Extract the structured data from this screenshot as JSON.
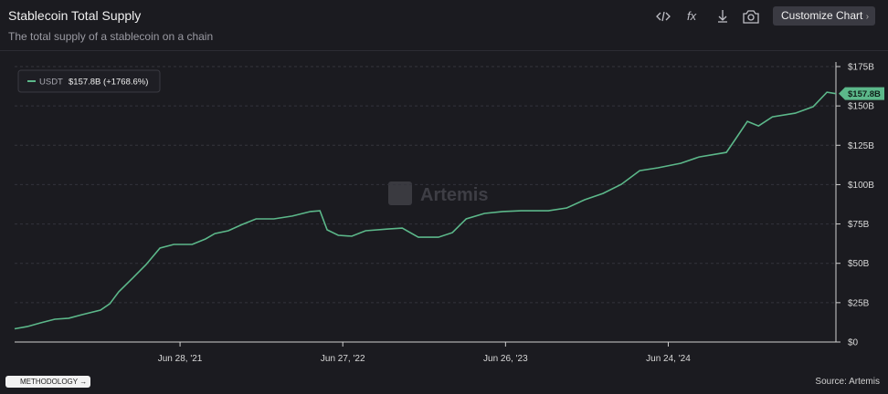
{
  "page": {
    "title": "Stablecoin Total Supply",
    "subtitle": "The total supply of a stablecoin on a chain",
    "button": "Customize Chart",
    "methodology": "METHODOLOGY",
    "source": "Source: Artemis",
    "watermark": "Artemis"
  },
  "chart_data": {
    "type": "line",
    "x": [
      "2020-06-23",
      "2020-07-21",
      "2020-08-21",
      "2020-09-21",
      "2020-10-22",
      "2020-11-21",
      "2021-01-01",
      "2021-01-22",
      "2021-02-11",
      "2021-03-14",
      "2021-04-13",
      "2021-05-14",
      "2021-06-14",
      "2021-07-25",
      "2021-08-24",
      "2021-09-14",
      "2021-10-14",
      "2021-11-14",
      "2021-12-15",
      "2022-01-24",
      "2022-03-06",
      "2022-04-16",
      "2022-05-07",
      "2022-05-23",
      "2022-06-17",
      "2022-07-17",
      "2022-08-17",
      "2022-10-07",
      "2022-11-07",
      "2022-12-13",
      "2023-01-27",
      "2023-02-27",
      "2023-03-30",
      "2023-05-10",
      "2023-06-20",
      "2023-07-31",
      "2023-09-30",
      "2023-11-10",
      "2023-12-20",
      "2024-01-30",
      "2024-03-11",
      "2024-04-21",
      "2024-06-01",
      "2024-07-22",
      "2024-09-01",
      "2024-11-01",
      "2024-11-22",
      "2024-12-18",
      "2025-01-12",
      "2025-02-12",
      "2025-04-04",
      "2025-05-14",
      "2025-06-14",
      "2025-07-04"
    ],
    "series": [
      {
        "name": "USDT",
        "color": "#5cb88a",
        "legend_value": "$157.8B (+1768.6%)",
        "last_label": "$157.8B",
        "values": [
          8.4,
          9.8,
          12.2,
          14.5,
          15.1,
          17.4,
          20.3,
          24.3,
          31.9,
          40.6,
          49.2,
          59.7,
          62.0,
          62.0,
          65.5,
          68.9,
          70.7,
          74.7,
          78.2,
          78.2,
          80.0,
          82.9,
          83.4,
          71.3,
          67.8,
          67.2,
          70.7,
          71.8,
          72.4,
          66.6,
          66.6,
          69.5,
          78.2,
          81.7,
          82.9,
          83.4,
          83.4,
          85.2,
          90.4,
          94.4,
          100.2,
          108.9,
          110.7,
          113.6,
          117.6,
          120.5,
          129.2,
          140.2,
          137.3,
          143.1,
          145.4,
          149.5,
          158.7,
          157.8
        ]
      }
    ],
    "xlim": [
      "2020-06-23",
      "2025-07-04"
    ],
    "xticks": [
      {
        "value": "2021-06-28",
        "label": "Jun 28, '21"
      },
      {
        "value": "2022-06-27",
        "label": "Jun 27, '22"
      },
      {
        "value": "2023-06-26",
        "label": "Jun 26, '23"
      },
      {
        "value": "2024-06-24",
        "label": "Jun 24, '24"
      }
    ],
    "ylim": [
      0,
      175
    ],
    "yticks": [
      {
        "value": 0,
        "label": "$0"
      },
      {
        "value": 25,
        "label": "$25B"
      },
      {
        "value": 50,
        "label": "$50B"
      },
      {
        "value": 75,
        "label": "$75B"
      },
      {
        "value": 100,
        "label": "$100B"
      },
      {
        "value": 125,
        "label": "$125B"
      },
      {
        "value": 150,
        "label": "$150B"
      },
      {
        "value": 175,
        "label": "$175B"
      }
    ],
    "grid": true
  }
}
